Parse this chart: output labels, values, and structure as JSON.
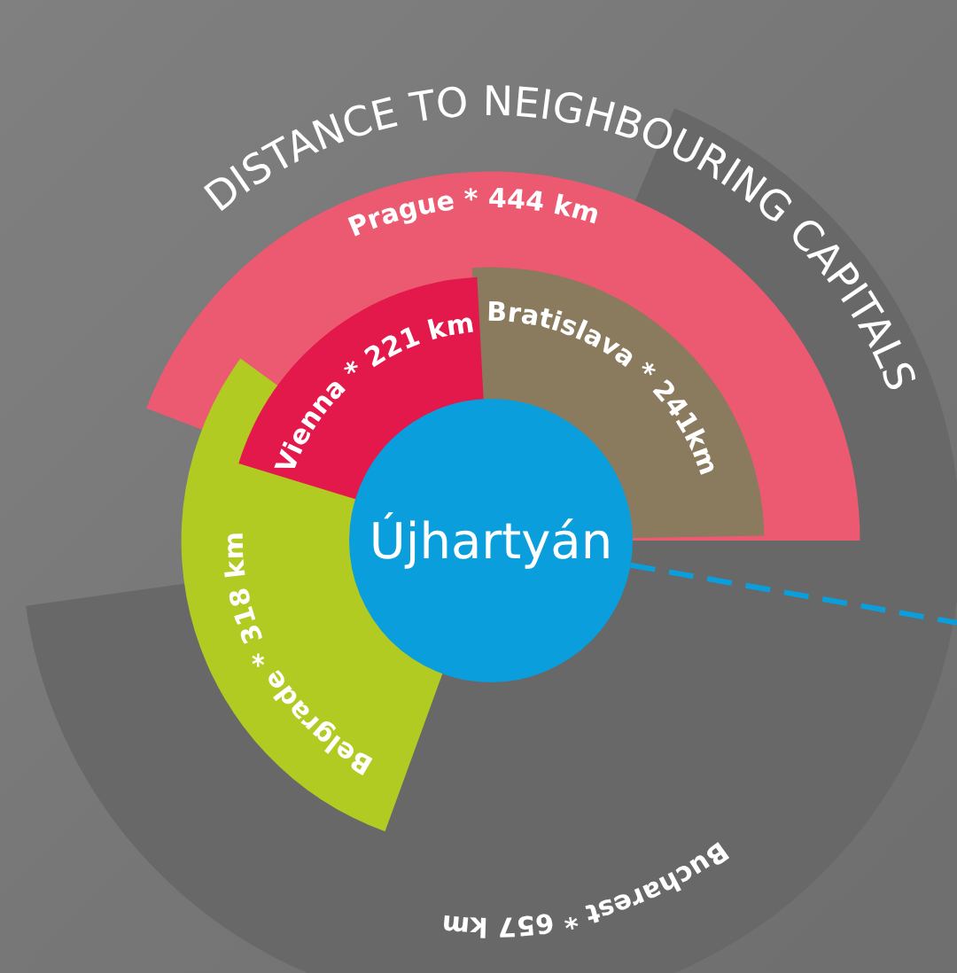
{
  "chart_data": {
    "type": "other",
    "title": "DISTANCE TO NEIGHBOURING CAPITALS",
    "values": [
      657,
      444,
      318,
      241,
      221
    ],
    "categories": [
      "Bucharest",
      "Prague",
      "Belgrade",
      "Bratislava",
      "Vienna"
    ],
    "value_labels": [
      "* 657 km",
      "* 444 km",
      "* 318 km",
      "* 241km",
      "* 221 km"
    ],
    "colors": [
      "#686868",
      "#ec5a72",
      "#b2cb22",
      "#8a7a5e",
      "#e4194b"
    ],
    "annotations": [
      "Újhartyán"
    ]
  }
}
